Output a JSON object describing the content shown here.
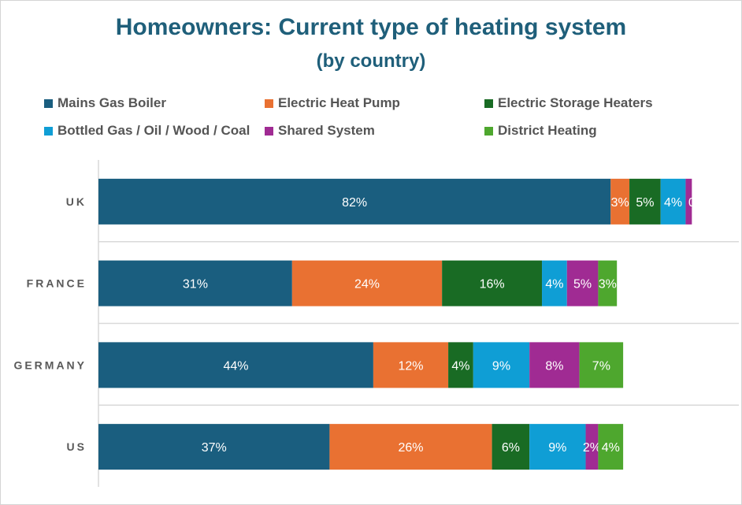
{
  "chart_data": {
    "type": "bar",
    "orientation": "horizontal",
    "stacked": true,
    "title": "Homeowners: Current type of heating system",
    "subtitle": "(by country)",
    "categories": [
      "UK",
      "FRANCE",
      "GERMANY",
      "US"
    ],
    "series": [
      {
        "name": "Mains Gas Boiler",
        "color": "#1a5e7f",
        "values": [
          82,
          31,
          44,
          37
        ],
        "labels": [
          "82%",
          "31%",
          "44%",
          "37%"
        ]
      },
      {
        "name": "Electric Heat Pump",
        "color": "#e97132",
        "values": [
          3,
          24,
          12,
          26
        ],
        "labels": [
          "3%",
          "24%",
          "12%",
          "26%"
        ]
      },
      {
        "name": "Electric Storage Heaters",
        "color": "#196b24",
        "values": [
          5,
          16,
          4,
          6
        ],
        "labels": [
          "5%",
          "16%",
          "4%",
          "6%"
        ]
      },
      {
        "name": "Bottled Gas / Oil / Wood / Coal",
        "color": "#0f9ed5",
        "values": [
          4,
          4,
          9,
          9
        ],
        "labels": [
          "4%",
          "4%",
          "9%",
          "9%"
        ]
      },
      {
        "name": "Shared System",
        "color": "#a02b93",
        "values": [
          1,
          5,
          8,
          2
        ],
        "labels": [
          "",
          "5%",
          "8%",
          "2%"
        ]
      },
      {
        "name": "District Heating",
        "color": "#4ea72e",
        "values": [
          0,
          3,
          7,
          4
        ],
        "labels": [
          "0",
          "3%",
          "7%",
          "4%"
        ]
      }
    ],
    "xlim": [
      0,
      100
    ],
    "grid": true,
    "legend_position": "top"
  }
}
